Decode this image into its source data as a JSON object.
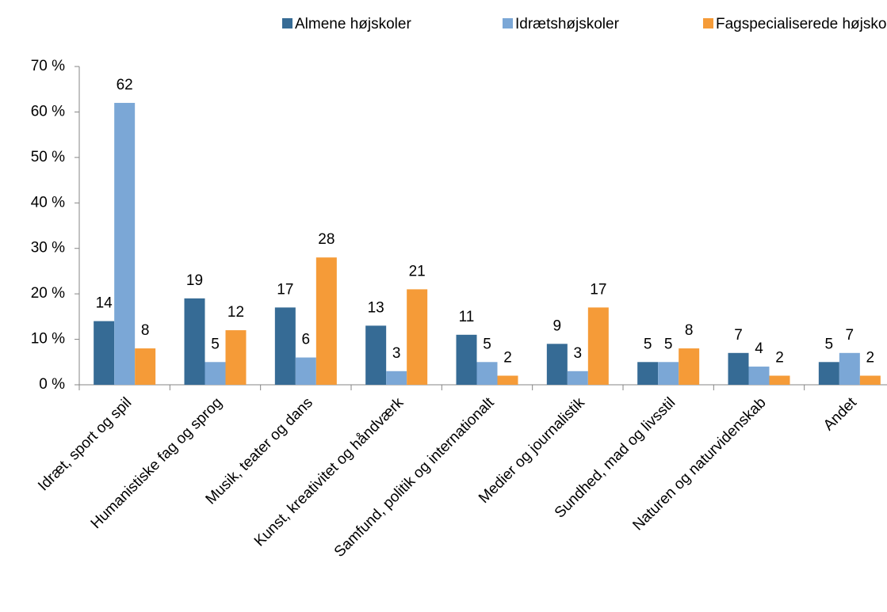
{
  "chart_data": {
    "type": "bar",
    "categories": [
      "Idræt, sport og spil",
      "Humanistiske fag og sprog",
      "Musik, teater og dans",
      "Kunst, kreativitet og håndværk",
      "Samfund, politik og internationalt",
      "Medier og journalistik",
      "Sundhed, mad og livsstil",
      "Naturen og naturvidenskab",
      "Andet"
    ],
    "series": [
      {
        "name": "Almene højskoler",
        "color": "#366b95",
        "values": [
          14,
          19,
          17,
          13,
          11,
          9,
          5,
          7,
          5
        ]
      },
      {
        "name": "Idrætshøjskoler",
        "color": "#7ba7d6",
        "values": [
          62,
          5,
          6,
          3,
          5,
          3,
          5,
          4,
          7
        ]
      },
      {
        "name": "Fagspecialiserede højskoler",
        "color": "#f59b38",
        "values": [
          8,
          12,
          28,
          21,
          2,
          17,
          8,
          2,
          2
        ]
      }
    ],
    "ylim": [
      0,
      70
    ],
    "yticks": [
      {
        "value": 0,
        "label": "0 %"
      },
      {
        "value": 10,
        "label": "10 %"
      },
      {
        "value": 20,
        "label": "20 %"
      },
      {
        "value": 30,
        "label": "30 %"
      },
      {
        "value": 40,
        "label": "40 %"
      },
      {
        "value": 50,
        "label": "50 %"
      },
      {
        "value": 60,
        "label": "60 %"
      },
      {
        "value": 70,
        "label": "70 %"
      }
    ],
    "legend": "top",
    "grid": false
  }
}
